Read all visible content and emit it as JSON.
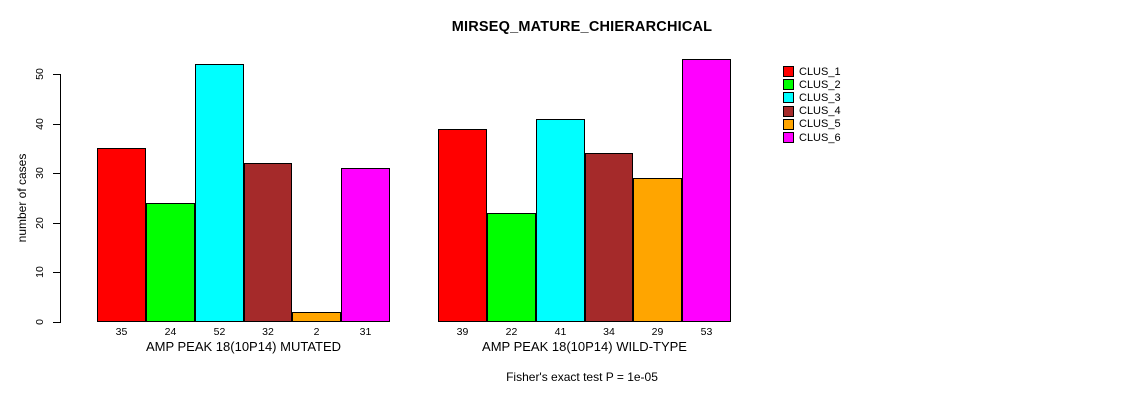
{
  "chart_data": {
    "type": "bar",
    "title": "MIRSEQ_MATURE_CHIERARCHICAL",
    "ylabel": "number of cases",
    "subtitle": "Fisher's exact test P = 1e-05",
    "ylim": [
      0,
      50
    ],
    "yticks": [
      0,
      10,
      20,
      30,
      40,
      50
    ],
    "grid": false,
    "legend_position": "top-right-outside-bars",
    "value_labels_shown": true,
    "categories": [
      "AMP PEAK 18(10P14) MUTATED",
      "AMP PEAK 18(10P14) WILD-TYPE"
    ],
    "series": [
      {
        "name": "CLUS_1",
        "color": "#FF0000",
        "values": [
          35,
          39
        ]
      },
      {
        "name": "CLUS_2",
        "color": "#00FF00",
        "values": [
          24,
          22
        ]
      },
      {
        "name": "CLUS_3",
        "color": "#00FFFF",
        "values": [
          52,
          41
        ]
      },
      {
        "name": "CLUS_4",
        "color": "#A52A2A",
        "values": [
          32,
          34
        ]
      },
      {
        "name": "CLUS_5",
        "color": "#FFA500",
        "values": [
          2,
          29
        ]
      },
      {
        "name": "CLUS_6",
        "color": "#FF00FF",
        "values": [
          31,
          53
        ]
      }
    ]
  }
}
